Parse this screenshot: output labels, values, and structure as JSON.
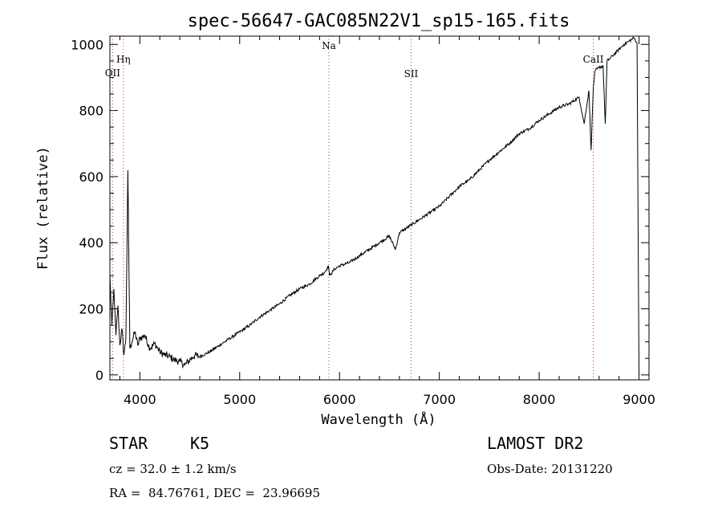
{
  "chart_data": {
    "type": "line",
    "title": "spec-56647-GAC085N22V1_sp15-165.fits",
    "xlabel": "Wavelength (Å)",
    "ylabel": "Flux (relative)",
    "xlim": [
      3700,
      9100
    ],
    "ylim": [
      -15,
      1025
    ],
    "x_ticks": [
      4000,
      5000,
      6000,
      7000,
      8000,
      9000
    ],
    "y_ticks": [
      0,
      200,
      400,
      600,
      800,
      1000
    ],
    "series": [
      {
        "color": "#000000",
        "x": [
          3700,
          3720,
          3740,
          3760,
          3780,
          3800,
          3820,
          3840,
          3860,
          3880,
          3900,
          3920,
          3950,
          3980,
          4000,
          4050,
          4100,
          4150,
          4200,
          4250,
          4300,
          4350,
          4400,
          4450,
          4500,
          4550,
          4600,
          4700,
          4800,
          4900,
          5000,
          5100,
          5200,
          5300,
          5400,
          5500,
          5600,
          5700,
          5800,
          5850,
          5890,
          5900,
          5950,
          6000,
          6100,
          6200,
          6300,
          6400,
          6500,
          6560,
          6600,
          6700,
          6800,
          6900,
          7000,
          7100,
          7200,
          7300,
          7400,
          7500,
          7600,
          7700,
          7800,
          7900,
          8000,
          8100,
          8200,
          8300,
          8400,
          8450,
          8498,
          8520,
          8542,
          8560,
          8600,
          8640,
          8662,
          8680,
          8700,
          8750,
          8800,
          8850,
          8900,
          8950,
          8980,
          9000
        ],
        "y": [
          300,
          150,
          260,
          120,
          210,
          90,
          140,
          60,
          110,
          620,
          80,
          100,
          130,
          90,
          110,
          120,
          80,
          95,
          70,
          60,
          55,
          45,
          40,
          30,
          45,
          60,
          55,
          70,
          90,
          110,
          130,
          150,
          175,
          195,
          215,
          240,
          260,
          275,
          300,
          310,
          330,
          300,
          320,
          330,
          340,
          360,
          380,
          400,
          420,
          380,
          430,
          450,
          470,
          490,
          510,
          540,
          570,
          590,
          620,
          650,
          675,
          700,
          730,
          745,
          770,
          790,
          810,
          820,
          840,
          760,
          860,
          680,
          870,
          920,
          930,
          935,
          760,
          950,
          955,
          970,
          985,
          1000,
          1010,
          1020,
          1005,
          0
        ]
      }
    ],
    "spectral_lines": [
      {
        "name": "OII",
        "x": 3727
      },
      {
        "name": "Hη",
        "x": 3835
      },
      {
        "name": "Na",
        "x": 5893
      },
      {
        "name": "SII",
        "x": 6717
      },
      {
        "name": "CaII",
        "x": 8542
      }
    ],
    "line_color": "#c0392b",
    "grid": false,
    "legend": "none"
  },
  "info": {
    "object_type": "STAR",
    "subclass": "K5",
    "cz": "cz = 32.0 ± 1.2 km/s",
    "coords": "RA =  84.76761, DEC =  23.96695",
    "survey": "LAMOST DR2",
    "obs_date": "Obs-Date: 20131220"
  }
}
